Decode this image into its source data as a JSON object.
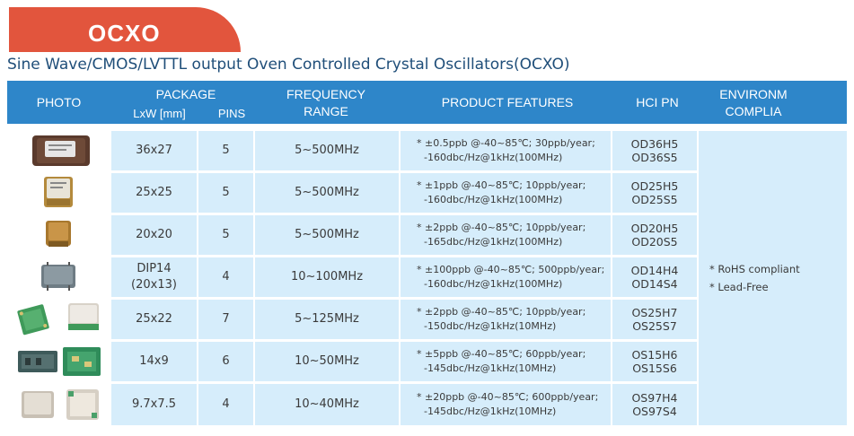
{
  "banner": {
    "title": "OCXO"
  },
  "subtitle": "Sine Wave/CMOS/LVTTL output Oven Controlled Crystal Oscillators(OCXO)",
  "headers": {
    "photo": "PHOTO",
    "package": "PACKAGE",
    "lxw": "LxW [mm]",
    "pins": "PINS",
    "freq_line1": "FREQUENCY",
    "freq_line2": "RANGE",
    "features": "PRODUCT FEATURES",
    "hci": "HCI PN",
    "env_line1": "ENVIRONM",
    "env_line2": "COMPLIA"
  },
  "rows": [
    {
      "size": "36x27",
      "size2": "",
      "pins": "5",
      "freq": "5~500MHz",
      "f1": "* ±0.5ppb @-40~85℃;  30ppb/year;",
      "f2": "-160dbc/Hz@1kHz(100MHz)",
      "pn1": "OD36H5",
      "pn2": "OD36S5"
    },
    {
      "size": "25x25",
      "size2": "",
      "pins": "5",
      "freq": "5~500MHz",
      "f1": "* ±1ppb @-40~85℃;  10ppb/year;",
      "f2": "-160dbc/Hz@1kHz(100MHz)",
      "pn1": "OD25H5",
      "pn2": "OD25S5"
    },
    {
      "size": "20x20",
      "size2": "",
      "pins": "5",
      "freq": "5~500MHz",
      "f1": "* ±2ppb @-40~85℃;  10ppb/year;",
      "f2": "-165dbc/Hz@1kHz(100MHz)",
      "pn1": "OD20H5",
      "pn2": "OD20S5"
    },
    {
      "size": "DIP14",
      "size2": "(20x13)",
      "pins": "4",
      "freq": "10~100MHz",
      "f1": "* ±100ppb @-40~85℃;  500ppb/year;",
      "f2": "-160dbc/Hz@1kHz(100MHz)",
      "pn1": "OD14H4",
      "pn2": "OD14S4"
    },
    {
      "size": "25x22",
      "size2": "",
      "pins": "7",
      "freq": "5~125MHz",
      "f1": "* ±2ppb @-40~85℃;  10ppb/year;",
      "f2": "-150dbc/Hz@1kHz(10MHz)",
      "pn1": "OS25H7",
      "pn2": "OS25S7"
    },
    {
      "size": "14x9",
      "size2": "",
      "pins": "6",
      "freq": "10~50MHz",
      "f1": "* ±5ppb @-40~85℃;  60ppb/year;",
      "f2": "-145dbc/Hz@1kHz(10MHz)",
      "pn1": "OS15H6",
      "pn2": "OS15S6"
    },
    {
      "size": "9.7x7.5",
      "size2": "",
      "pins": "4",
      "freq": "10~40MHz",
      "f1": "* ±20ppb @-40~85℃;  600ppb/year;",
      "f2": "-145dbc/Hz@1kHz(10MHz)",
      "pn1": "OS97H4",
      "pn2": "OS97S4"
    }
  ],
  "environment": {
    "items": [
      "* RoHS compliant",
      "* Lead-Free"
    ]
  },
  "colors": {
    "banner": "#e2553d",
    "header": "#2e86c9",
    "cell": "#d6edfb",
    "subtitle": "#1f4e79"
  }
}
